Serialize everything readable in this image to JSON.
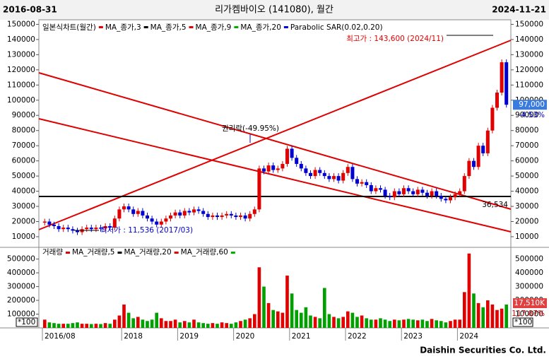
{
  "chart_data": {
    "type": "candlestick",
    "title": "리가켐바이오 (141080), 월간",
    "start_date": "2016-08-31",
    "end_date": "2024-11-21",
    "footer": "Daishin Securities Co. Ltd.",
    "legend": [
      "일본식차트(월간)",
      "MA_종가,3",
      "MA_종가,5",
      "MA_종가,9",
      "MA_종가,20",
      "Parabolic SAR(0.02,0.20)"
    ],
    "volume_legend": [
      "거래량",
      "MA_거래량,5",
      "MA_거래량,20",
      "MA_거래량,60"
    ],
    "categories": [
      "2016/08",
      null,
      null,
      null,
      null,
      null,
      null,
      null,
      null,
      null,
      null,
      null,
      null,
      null,
      null,
      null,
      null,
      "2018",
      null,
      null,
      null,
      null,
      null,
      null,
      null,
      null,
      null,
      null,
      null,
      "2019",
      null,
      null,
      null,
      null,
      null,
      null,
      null,
      null,
      null,
      null,
      null,
      "2020",
      null,
      null,
      null,
      null,
      null,
      null,
      null,
      null,
      null,
      null,
      null,
      "2021",
      null,
      null,
      null,
      null,
      null,
      null,
      null,
      null,
      null,
      null,
      null,
      "2022",
      null,
      null,
      null,
      null,
      null,
      null,
      null,
      null,
      null,
      null,
      null,
      "2023",
      null,
      null,
      null,
      null,
      null,
      null,
      null,
      null,
      null,
      null,
      null,
      "2024",
      null,
      null,
      null,
      null,
      null,
      null,
      null,
      null,
      null,
      null
    ],
    "series": [
      {
        "name": "종가",
        "up_color": "#e00000",
        "down_color": "#0000d0",
        "values": [
          20000,
          18000,
          17000,
          15000,
          16000,
          15000,
          14000,
          13000,
          15000,
          16000,
          15000,
          16000,
          15500,
          17000,
          16000,
          22000,
          28000,
          30000,
          28000,
          25000,
          27000,
          24000,
          22000,
          20000,
          18000,
          20000,
          22000,
          24000,
          26000,
          24000,
          27000,
          26000,
          28000,
          27000,
          25000,
          23000,
          24000,
          23000,
          24000,
          25000,
          24000,
          23000,
          24000,
          22000,
          25000,
          28000,
          55000,
          53000,
          57000,
          54000,
          55000,
          58000,
          68000,
          62000,
          58000,
          55000,
          52000,
          50000,
          54000,
          52000,
          50000,
          48000,
          50000,
          47000,
          52000,
          56000,
          48000,
          45000,
          46000,
          44000,
          40000,
          42000,
          41000,
          37000,
          36000,
          40000,
          38000,
          42000,
          40000,
          38000,
          41000,
          39000,
          37000,
          40000,
          37000,
          35000,
          34000,
          36000,
          38000,
          40000,
          50000,
          60000,
          56000,
          70000,
          65000,
          80000,
          95000,
          105000,
          125000,
          97000
        ]
      },
      {
        "name": "거래량",
        "axis": "y2",
        "up_color": "#e00000",
        "down_color": "#00a000",
        "values": [
          60000,
          40000,
          35000,
          30000,
          30000,
          30000,
          35000,
          40000,
          30000,
          30000,
          28000,
          30000,
          28000,
          35000,
          30000,
          60000,
          90000,
          170000,
          110000,
          70000,
          80000,
          60000,
          50000,
          60000,
          110000,
          70000,
          50000,
          50000,
          60000,
          40000,
          50000,
          40000,
          60000,
          40000,
          35000,
          30000,
          35000,
          30000,
          40000,
          35000,
          30000,
          40000,
          50000,
          60000,
          70000,
          100000,
          440000,
          300000,
          180000,
          130000,
          120000,
          110000,
          380000,
          250000,
          130000,
          110000,
          150000,
          90000,
          80000,
          70000,
          290000,
          100000,
          80000,
          70000,
          80000,
          120000,
          110000,
          80000,
          90000,
          70000,
          60000,
          60000,
          70000,
          60000,
          50000,
          60000,
          55000,
          60000,
          65000,
          60000,
          55000,
          60000,
          50000,
          65000,
          55000,
          50000,
          40000,
          50000,
          60000,
          60000,
          260000,
          540000,
          250000,
          180000,
          150000,
          200000,
          170000,
          130000,
          140000,
          170000
        ]
      }
    ],
    "ylim": [
      3000,
      153000
    ],
    "yticks": [
      {
        "value": 10000,
        "label": "10000"
      },
      20000,
      30000,
      40000,
      50000,
      60000,
      70000,
      80000,
      90000,
      100000,
      110000,
      120000,
      130000,
      140000,
      150000
    ],
    "y2lim": [
      0,
      585000
    ],
    "y2ticks": [
      100000,
      200000,
      300000,
      400000,
      500000
    ],
    "reference_line": {
      "value": 36534,
      "label": "36,534"
    },
    "annotations": [
      "최고가 : 143,600 (2024/11)",
      "최저가 : 11,536 (2017/03)",
      "권리락(-49.95%)"
    ],
    "last_price": {
      "value": 97000,
      "label": "97,000"
    },
    "change_label": "-4.53%",
    "last_volume_label": "17,510K",
    "volume_ratio_label": "117.87%",
    "scale_note": "*100"
  }
}
